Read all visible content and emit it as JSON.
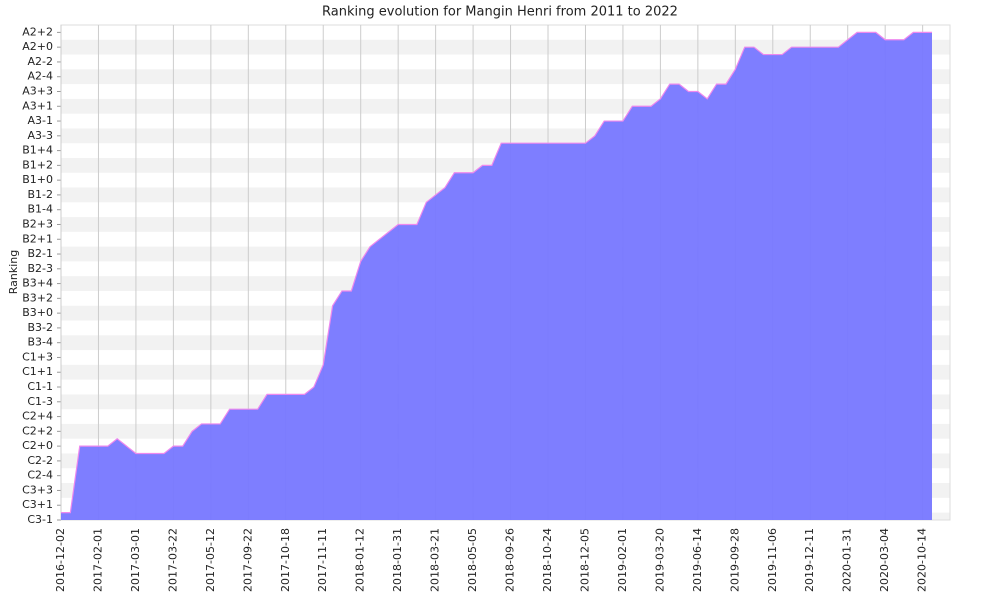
{
  "chart_data": {
    "type": "area",
    "title": "Ranking evolution for Mangin Henri from 2011 to 2022",
    "y_label": "Ranking",
    "categories": [
      "2016-12-02",
      null,
      null,
      null,
      "2017-02-01",
      null,
      null,
      null,
      "2017-03-01",
      null,
      null,
      null,
      "2017-03-22",
      null,
      null,
      null,
      "2017-05-12",
      null,
      null,
      null,
      "2017-09-22",
      null,
      null,
      null,
      "2017-10-18",
      null,
      null,
      null,
      "2017-11-11",
      null,
      null,
      null,
      "2018-01-12",
      null,
      null,
      null,
      "2018-01-31",
      null,
      null,
      null,
      "2018-03-21",
      null,
      null,
      null,
      "2018-05-05",
      null,
      null,
      null,
      "2018-09-26",
      null,
      null,
      null,
      "2018-10-24",
      null,
      null,
      null,
      "2018-12-05",
      null,
      null,
      null,
      "2019-02-01",
      null,
      null,
      null,
      "2019-03-20",
      null,
      null,
      null,
      "2019-06-14",
      null,
      null,
      null,
      "2019-09-28",
      null,
      null,
      null,
      "2019-11-06",
      null,
      null,
      null,
      "2019-12-11",
      null,
      null,
      null,
      "2020-01-31",
      null,
      null,
      null,
      "2020-03-04",
      null,
      null,
      null,
      "2020-10-14",
      null
    ],
    "values": [
      0.5,
      0.5,
      5,
      5,
      5,
      5,
      5.5,
      5,
      4.5,
      4.5,
      4.5,
      4.5,
      5,
      5,
      6,
      6.5,
      6.5,
      6.5,
      7.5,
      7.5,
      7.5,
      7.5,
      8.5,
      8.5,
      8.5,
      8.5,
      8.5,
      9,
      10.5,
      14.5,
      15.5,
      15.5,
      17.5,
      18.5,
      19,
      19.5,
      20,
      20,
      20,
      21.5,
      22,
      22.5,
      23.5,
      23.5,
      23.5,
      24,
      24,
      25.5,
      25.5,
      25.5,
      25.5,
      25.5,
      25.5,
      25.5,
      25.5,
      25.5,
      25.5,
      26,
      27,
      27,
      27,
      28,
      28,
      28,
      28.5,
      29.5,
      29.5,
      29,
      29,
      28.5,
      29.5,
      29.5,
      30.5,
      32,
      32,
      31.5,
      31.5,
      31.5,
      32,
      32,
      32,
      32,
      32,
      32,
      32.5,
      33,
      33,
      33,
      32.5,
      32.5,
      32.5,
      33,
      33,
      33
    ],
    "color": "#7777ff",
    "line_color": "#ee88ee",
    "ylim": [
      0,
      33.5
    ],
    "yticks": [
      {
        "value": 0,
        "label": "C3-1"
      },
      {
        "value": 1,
        "label": "C3+1"
      },
      {
        "value": 2,
        "label": "C3+3"
      },
      {
        "value": 3,
        "label": "C2-4"
      },
      {
        "value": 4,
        "label": "C2-2"
      },
      {
        "value": 5,
        "label": "C2+0"
      },
      {
        "value": 6,
        "label": "C2+2"
      },
      {
        "value": 7,
        "label": "C2+4"
      },
      {
        "value": 8,
        "label": "C1-3"
      },
      {
        "value": 9,
        "label": "C1-1"
      },
      {
        "value": 10,
        "label": "C1+1"
      },
      {
        "value": 11,
        "label": "C1+3"
      },
      {
        "value": 12,
        "label": "B3-4"
      },
      {
        "value": 13,
        "label": "B3-2"
      },
      {
        "value": 14,
        "label": "B3+0"
      },
      {
        "value": 15,
        "label": "B3+2"
      },
      {
        "value": 16,
        "label": "B3+4"
      },
      {
        "value": 17,
        "label": "B2-3"
      },
      {
        "value": 18,
        "label": "B2-1"
      },
      {
        "value": 19,
        "label": "B2+1"
      },
      {
        "value": 20,
        "label": "B2+3"
      },
      {
        "value": 21,
        "label": "B1-4"
      },
      {
        "value": 22,
        "label": "B1-2"
      },
      {
        "value": 23,
        "label": "B1+0"
      },
      {
        "value": 24,
        "label": "B1+2"
      },
      {
        "value": 25,
        "label": "B1+4"
      },
      {
        "value": 26,
        "label": "A3-3"
      },
      {
        "value": 27,
        "label": "A3-1"
      },
      {
        "value": 28,
        "label": "A3+1"
      },
      {
        "value": 29,
        "label": "A3+3"
      },
      {
        "value": 30,
        "label": "A2-4"
      },
      {
        "value": 31,
        "label": "A2-2"
      },
      {
        "value": 32,
        "label": "A2+0"
      },
      {
        "value": 33,
        "label": "A2+2"
      }
    ],
    "grid": true
  }
}
